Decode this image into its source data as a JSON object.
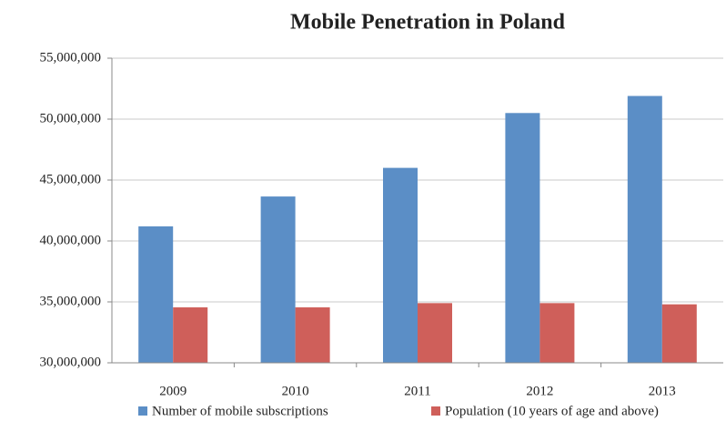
{
  "chart_data": {
    "type": "bar",
    "title": "Mobile Penetration in Poland",
    "categories": [
      "2009",
      "2010",
      "2011",
      "2012",
      "2013"
    ],
    "series": [
      {
        "name": "Number of mobile subscriptions",
        "color": "#5b8ec6",
        "values": [
          41200000,
          43650000,
          46000000,
          50500000,
          51900000
        ]
      },
      {
        "name": "Population (10 years of age and above)",
        "color": "#cf5f5a",
        "values": [
          34550000,
          34550000,
          34900000,
          34900000,
          34800000
        ]
      }
    ],
    "ylim": [
      30000000,
      55000000
    ],
    "yticks": [
      {
        "value": 30000000,
        "label": "30,000,000"
      },
      {
        "value": 35000000,
        "label": "35,000,000"
      },
      {
        "value": 40000000,
        "label": "40,000,000"
      },
      {
        "value": 45000000,
        "label": "45,000,000"
      },
      {
        "value": 50000000,
        "label": "50,000,000"
      },
      {
        "value": 55000000,
        "label": "55,000,000"
      }
    ],
    "grid": true,
    "legend": "bottom"
  }
}
